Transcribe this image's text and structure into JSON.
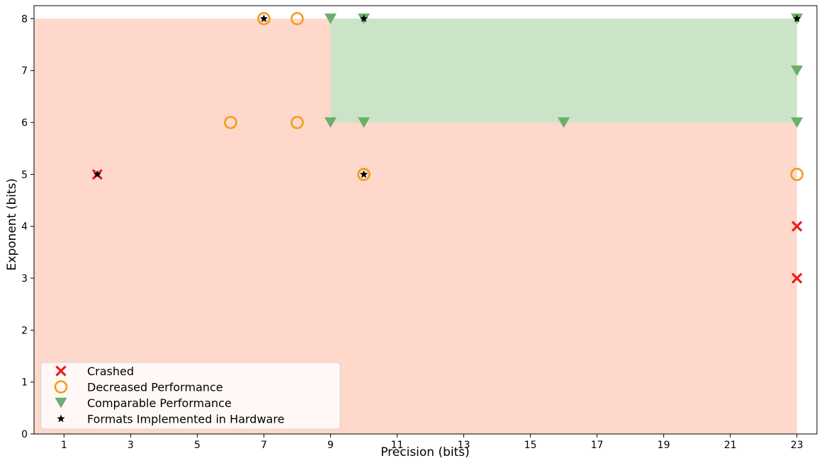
{
  "chart_data": {
    "type": "scatter",
    "xlabel": "Precision (bits)",
    "ylabel": "Exponent (bits)",
    "xlim": [
      0.1,
      23.6
    ],
    "ylim": [
      0,
      8.25
    ],
    "xticks": [
      1,
      3,
      5,
      7,
      9,
      11,
      13,
      15,
      17,
      19,
      21,
      23
    ],
    "yticks": [
      0,
      1,
      2,
      3,
      4,
      5,
      6,
      7,
      8
    ],
    "grid": false,
    "legend_position": "lower-left",
    "regions": [
      {
        "name": "decreased-region",
        "x": [
          0.1,
          23
        ],
        "y": [
          0,
          8
        ],
        "color": "#fdd8cb"
      },
      {
        "name": "comparable-region",
        "x": [
          9,
          23
        ],
        "y": [
          6,
          8
        ],
        "color": "#cbe4c8"
      }
    ],
    "series": [
      {
        "name": "Crashed",
        "marker": "x",
        "color": "#ee1c1c",
        "points": [
          {
            "x": 2,
            "y": 5
          },
          {
            "x": 23,
            "y": 4
          },
          {
            "x": 23,
            "y": 3
          }
        ]
      },
      {
        "name": "Decreased Performance",
        "marker": "circle",
        "color": "#f39c1e",
        "points": [
          {
            "x": 7,
            "y": 8
          },
          {
            "x": 8,
            "y": 8
          },
          {
            "x": 6,
            "y": 6
          },
          {
            "x": 8,
            "y": 6
          },
          {
            "x": 10,
            "y": 5
          },
          {
            "x": 23,
            "y": 5
          }
        ]
      },
      {
        "name": "Comparable Performance",
        "marker": "triangle-down",
        "color": "#6ab06a",
        "points": [
          {
            "x": 9,
            "y": 8
          },
          {
            "x": 10,
            "y": 8
          },
          {
            "x": 23,
            "y": 8
          },
          {
            "x": 23,
            "y": 7
          },
          {
            "x": 9,
            "y": 6
          },
          {
            "x": 10,
            "y": 6
          },
          {
            "x": 16,
            "y": 6
          },
          {
            "x": 23,
            "y": 6
          }
        ]
      },
      {
        "name": "Formats Implemented in Hardware",
        "marker": "star",
        "color": "#000000",
        "points": [
          {
            "x": 2,
            "y": 5
          },
          {
            "x": 7,
            "y": 8
          },
          {
            "x": 10,
            "y": 8
          },
          {
            "x": 23,
            "y": 8
          },
          {
            "x": 10,
            "y": 5
          }
        ]
      }
    ]
  }
}
